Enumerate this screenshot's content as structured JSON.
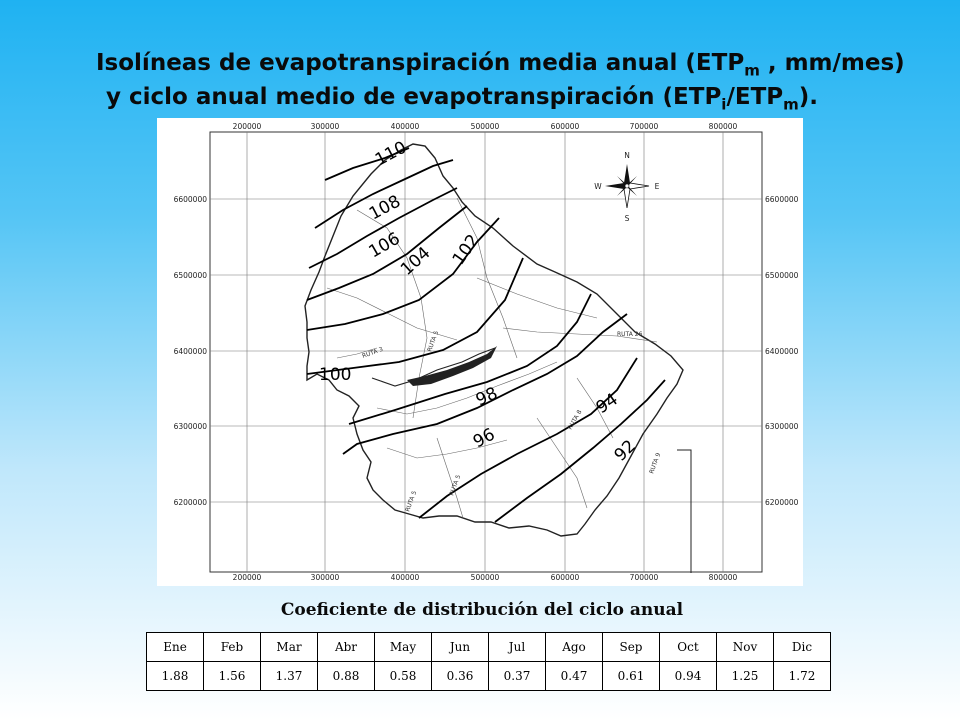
{
  "title": {
    "line1_pre": "Isolíneas de evapotranspiración media anual (ETP",
    "line1_sub": "m",
    "line1_post": " , mm/mes)",
    "line2_pre": "y ciclo anual medio de evapotranspiración (ETP",
    "line2_sub1": "i",
    "line2_mid": "/ETP",
    "line2_sub2": "m",
    "line2_post": ")."
  },
  "map": {
    "x_ticks": [
      "200000",
      "300000",
      "400000",
      "500000",
      "600000",
      "700000",
      "800000"
    ],
    "y_ticks": [
      "6600000",
      "6500000",
      "6400000",
      "6300000",
      "6200000"
    ],
    "isoline_labels": [
      "110",
      "108",
      "106",
      "104",
      "102",
      "100",
      "98",
      "96",
      "94",
      "92"
    ],
    "compass": {
      "n": "N",
      "s": "S",
      "e": "E",
      "w": "W"
    },
    "route_labels": [
      "RUTA 3",
      "RUTA 5",
      "RUTA 26",
      "RUTA 8",
      "RUTA 5",
      "RUTA 9",
      "RUTA 5"
    ]
  },
  "table": {
    "caption": "Coeficiente de distribución del ciclo anual",
    "months": [
      "Ene",
      "Feb",
      "Mar",
      "Abr",
      "May",
      "Jun",
      "Jul",
      "Ago",
      "Sep",
      "Oct",
      "Nov",
      "Dic"
    ],
    "values": [
      "1.88",
      "1.56",
      "1.37",
      "0.88",
      "0.58",
      "0.36",
      "0.37",
      "0.47",
      "0.61",
      "0.94",
      "1.25",
      "1.72"
    ]
  }
}
